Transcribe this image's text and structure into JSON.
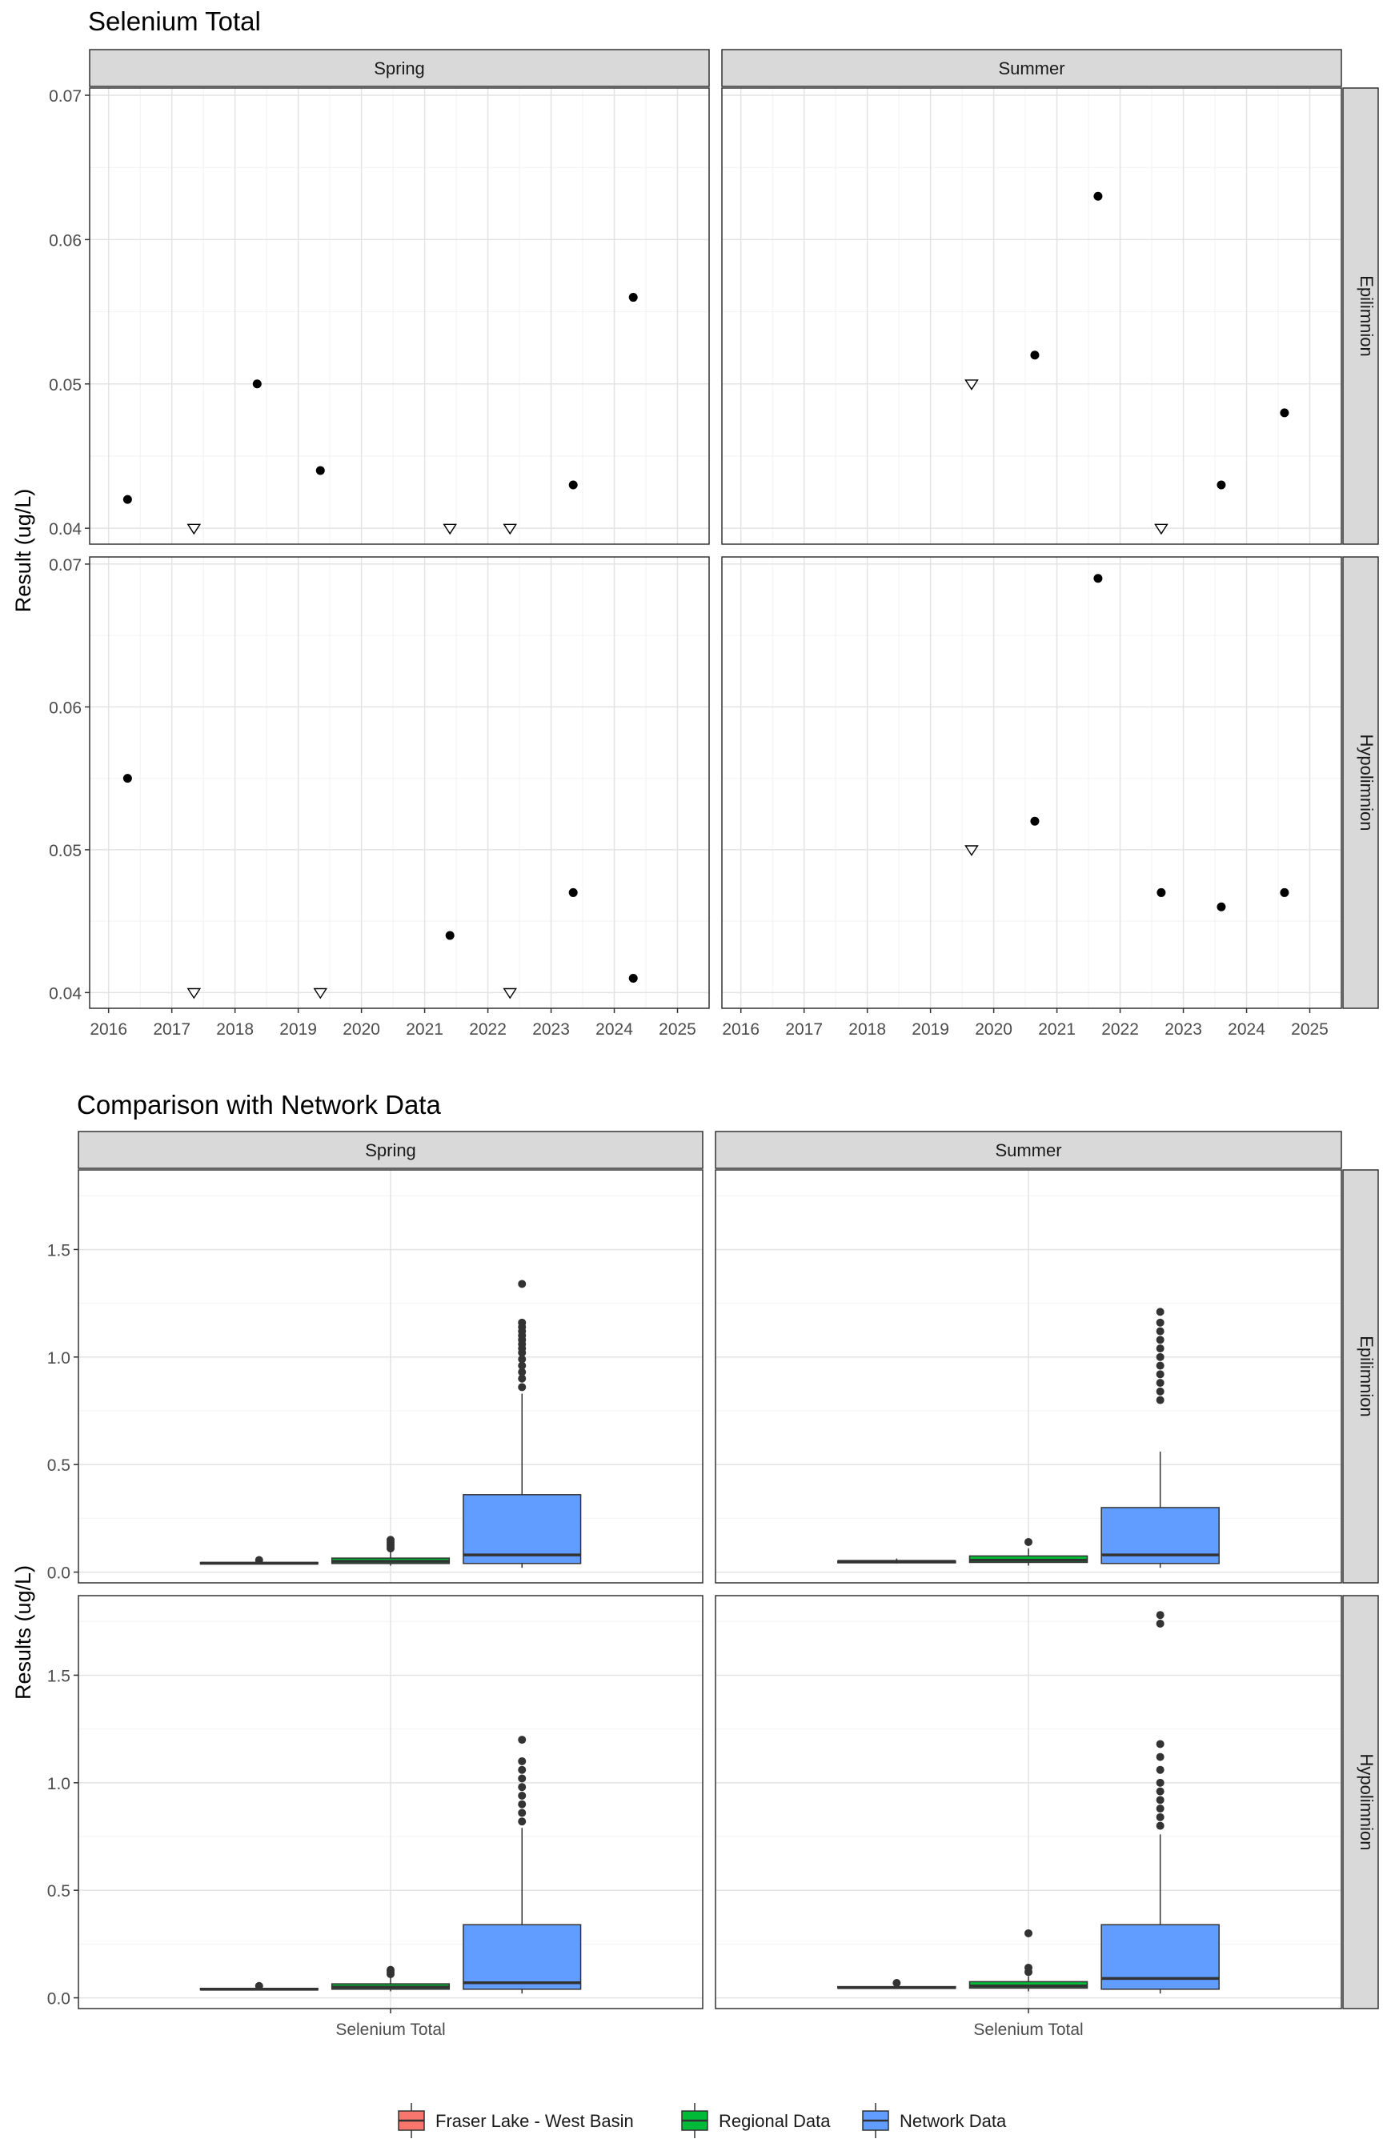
{
  "chart_data": [
    {
      "type": "scatter",
      "title": "Selenium Total",
      "ylabel": "Result (ug/L)",
      "xlabel": "",
      "x_ticks": [
        "2016",
        "2017",
        "2018",
        "2019",
        "2020",
        "2021",
        "2022",
        "2023",
        "2024",
        "2025"
      ],
      "y_ticks": [
        "0.04",
        "0.05",
        "0.06",
        "0.07"
      ],
      "xlim": [
        2015.7,
        2025.5
      ],
      "ylim": [
        0.0389,
        0.0705
      ],
      "grid": true,
      "columns": [
        "Spring",
        "Summer"
      ],
      "rows": [
        "Epilimnion",
        "Hypolimnion"
      ],
      "marker_legend": {
        "filled": "detected value",
        "open_triangle": "below detection limit"
      },
      "panels": [
        {
          "column": "Spring",
          "row": "Epilimnion",
          "points": [
            {
              "x": 2016.3,
              "y": 0.042,
              "detected": true
            },
            {
              "x": 2017.35,
              "y": 0.04,
              "detected": false
            },
            {
              "x": 2018.35,
              "y": 0.05,
              "detected": true
            },
            {
              "x": 2019.35,
              "y": 0.044,
              "detected": true
            },
            {
              "x": 2021.4,
              "y": 0.04,
              "detected": false
            },
            {
              "x": 2022.35,
              "y": 0.04,
              "detected": false
            },
            {
              "x": 2023.35,
              "y": 0.043,
              "detected": true
            },
            {
              "x": 2024.3,
              "y": 0.056,
              "detected": true
            }
          ]
        },
        {
          "column": "Summer",
          "row": "Epilimnion",
          "points": [
            {
              "x": 2019.65,
              "y": 0.05,
              "detected": false
            },
            {
              "x": 2020.65,
              "y": 0.052,
              "detected": true
            },
            {
              "x": 2021.65,
              "y": 0.063,
              "detected": true
            },
            {
              "x": 2022.65,
              "y": 0.04,
              "detected": false
            },
            {
              "x": 2023.6,
              "y": 0.043,
              "detected": true
            },
            {
              "x": 2024.6,
              "y": 0.048,
              "detected": true
            }
          ]
        },
        {
          "column": "Spring",
          "row": "Hypolimnion",
          "points": [
            {
              "x": 2016.3,
              "y": 0.055,
              "detected": true
            },
            {
              "x": 2017.35,
              "y": 0.04,
              "detected": false
            },
            {
              "x": 2019.35,
              "y": 0.04,
              "detected": false
            },
            {
              "x": 2021.4,
              "y": 0.044,
              "detected": true
            },
            {
              "x": 2022.35,
              "y": 0.04,
              "detected": false
            },
            {
              "x": 2023.35,
              "y": 0.047,
              "detected": true
            },
            {
              "x": 2024.3,
              "y": 0.041,
              "detected": true
            }
          ]
        },
        {
          "column": "Summer",
          "row": "Hypolimnion",
          "points": [
            {
              "x": 2019.65,
              "y": 0.05,
              "detected": false
            },
            {
              "x": 2020.65,
              "y": 0.052,
              "detected": true
            },
            {
              "x": 2021.65,
              "y": 0.069,
              "detected": true
            },
            {
              "x": 2022.65,
              "y": 0.047,
              "detected": true
            },
            {
              "x": 2023.6,
              "y": 0.046,
              "detected": true
            },
            {
              "x": 2024.6,
              "y": 0.047,
              "detected": true
            }
          ]
        }
      ]
    },
    {
      "type": "boxplot",
      "title": "Comparison with Network Data",
      "ylabel": "Results (ug/L)",
      "x_category": "Selenium Total",
      "y_ticks": [
        "0.0",
        "0.5",
        "1.0",
        "1.5"
      ],
      "ylim": [
        -0.05,
        1.87
      ],
      "grid": true,
      "columns": [
        "Spring",
        "Summer"
      ],
      "rows": [
        "Epilimnion",
        "Hypolimnion"
      ],
      "legend_position": "bottom",
      "legend": [
        {
          "label": "Fraser Lake - West Basin",
          "color": "#f8766d"
        },
        {
          "label": "Regional Data",
          "color": "#00ba38"
        },
        {
          "label": "Network Data",
          "color": "#619cff"
        }
      ],
      "panels": [
        {
          "column": "Spring",
          "row": "Epilimnion",
          "groups": [
            {
              "group": "Fraser Lake - West Basin",
              "q1": 0.038,
              "median": 0.041,
              "q3": 0.045,
              "whisker_low": 0.038,
              "whisker_high": 0.056,
              "outliers": [
                0.056
              ]
            },
            {
              "group": "Regional Data",
              "q1": 0.04,
              "median": 0.05,
              "q3": 0.065,
              "whisker_low": 0.03,
              "whisker_high": 0.1,
              "outliers": [
                0.11,
                0.12,
                0.13,
                0.14,
                0.15
              ]
            },
            {
              "group": "Network Data",
              "q1": 0.04,
              "median": 0.08,
              "q3": 0.36,
              "whisker_low": 0.02,
              "whisker_high": 0.83,
              "outliers": [
                0.86,
                0.9,
                0.93,
                0.96,
                0.99,
                1.02,
                1.04,
                1.06,
                1.08,
                1.1,
                1.12,
                1.14,
                1.16,
                1.34
              ]
            }
          ]
        },
        {
          "column": "Summer",
          "row": "Epilimnion",
          "groups": [
            {
              "group": "Fraser Lake - West Basin",
              "q1": 0.043,
              "median": 0.05,
              "q3": 0.052,
              "whisker_low": 0.04,
              "whisker_high": 0.063,
              "outliers": []
            },
            {
              "group": "Regional Data",
              "q1": 0.045,
              "median": 0.055,
              "q3": 0.075,
              "whisker_low": 0.03,
              "whisker_high": 0.11,
              "outliers": [
                0.14
              ]
            },
            {
              "group": "Network Data",
              "q1": 0.04,
              "median": 0.08,
              "q3": 0.3,
              "whisker_low": 0.02,
              "whisker_high": 0.56,
              "outliers": [
                0.8,
                0.84,
                0.88,
                0.92,
                0.96,
                1.0,
                1.04,
                1.08,
                1.12,
                1.16,
                1.21
              ]
            }
          ]
        },
        {
          "column": "Spring",
          "row": "Hypolimnion",
          "groups": [
            {
              "group": "Fraser Lake - West Basin",
              "q1": 0.038,
              "median": 0.04,
              "q3": 0.044,
              "whisker_low": 0.038,
              "whisker_high": 0.055,
              "outliers": [
                0.055
              ]
            },
            {
              "group": "Regional Data",
              "q1": 0.04,
              "median": 0.05,
              "q3": 0.065,
              "whisker_low": 0.03,
              "whisker_high": 0.1,
              "outliers": [
                0.11,
                0.12,
                0.13
              ]
            },
            {
              "group": "Network Data",
              "q1": 0.04,
              "median": 0.07,
              "q3": 0.34,
              "whisker_low": 0.02,
              "whisker_high": 0.79,
              "outliers": [
                0.82,
                0.86,
                0.9,
                0.94,
                0.98,
                1.02,
                1.06,
                1.1,
                1.2
              ]
            }
          ]
        },
        {
          "column": "Summer",
          "row": "Hypolimnion",
          "groups": [
            {
              "group": "Fraser Lake - West Basin",
              "q1": 0.046,
              "median": 0.047,
              "q3": 0.052,
              "whisker_low": 0.046,
              "whisker_high": 0.069,
              "outliers": [
                0.069
              ]
            },
            {
              "group": "Regional Data",
              "q1": 0.045,
              "median": 0.055,
              "q3": 0.075,
              "whisker_low": 0.03,
              "whisker_high": 0.1,
              "outliers": [
                0.12,
                0.14,
                0.3
              ]
            },
            {
              "group": "Network Data",
              "q1": 0.04,
              "median": 0.09,
              "q3": 0.34,
              "whisker_low": 0.02,
              "whisker_high": 0.76,
              "outliers": [
                0.8,
                0.84,
                0.88,
                0.92,
                0.96,
                1.0,
                1.06,
                1.12,
                1.18,
                1.74,
                1.78
              ]
            }
          ]
        }
      ]
    }
  ]
}
